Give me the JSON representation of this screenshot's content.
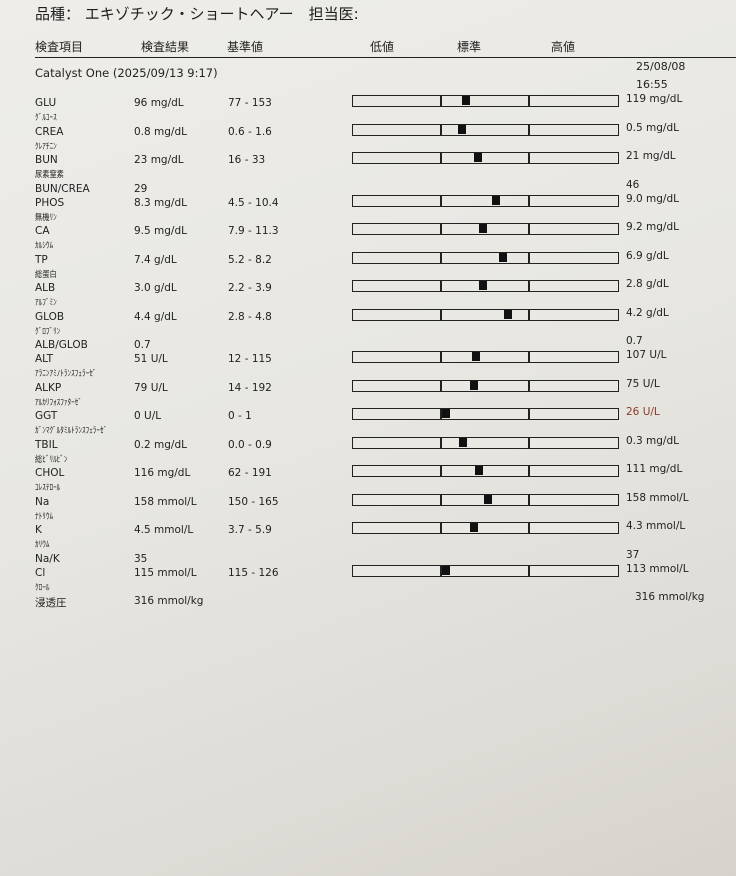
{
  "header": {
    "text": "品種： エキゾチック・ショートヘアー　担当医:"
  },
  "columns": {
    "item": "検査項目",
    "result": "検査結果",
    "reference": "基準値",
    "low": "低値",
    "normal": "標準",
    "high": "高値"
  },
  "analyzer": "Catalyst One (2025/09/13 9:17)",
  "previous": {
    "date": "25/08/08",
    "time": "16:55"
  },
  "colors": {
    "marker": "#111111",
    "prev_flag": "#8a3a2a"
  },
  "rows": [
    {
      "name": "GLU",
      "jp": "ｸﾞﾙｺｰｽ",
      "result": "96 mg/dL",
      "value": 96,
      "range": "77 - 153",
      "lo": 77,
      "hi": 153,
      "prev": "119 mg/dL"
    },
    {
      "name": "CREA",
      "jp": "ｸﾚｱﾁﾆﾝ",
      "result": "0.8 mg/dL",
      "value": 0.8,
      "range": "0.6 - 1.6",
      "lo": 0.6,
      "hi": 1.6,
      "prev": "0.5 mg/dL"
    },
    {
      "name": "BUN",
      "jp": "尿素窒素",
      "result": "23 mg/dL",
      "value": 23,
      "range": "16 - 33",
      "lo": 16,
      "hi": 33,
      "prev": "21 mg/dL"
    },
    {
      "name": "BUN/CREA",
      "jp": "",
      "result": "29",
      "range": "",
      "prev": "46"
    },
    {
      "name": "PHOS",
      "jp": "無機ﾘﾝ",
      "result": "8.3 mg/dL",
      "value": 8.3,
      "range": "4.5 - 10.4",
      "lo": 4.5,
      "hi": 10.4,
      "prev": "9.0 mg/dL"
    },
    {
      "name": "CA",
      "jp": "ｶﾙｼｳﾑ",
      "result": "9.5 mg/dL",
      "value": 9.5,
      "range": "7.9 - 11.3",
      "lo": 7.9,
      "hi": 11.3,
      "prev": "9.2 mg/dL"
    },
    {
      "name": "TP",
      "jp": "総蛋白",
      "result": "7.4 g/dL",
      "value": 7.4,
      "range": "5.2 - 8.2",
      "lo": 5.2,
      "hi": 8.2,
      "prev": "6.9 g/dL"
    },
    {
      "name": "ALB",
      "jp": "ｱﾙﾌﾞﾐﾝ",
      "result": "3.0 g/dL",
      "value": 3.0,
      "range": "2.2 - 3.9",
      "lo": 2.2,
      "hi": 3.9,
      "prev": "2.8 g/dL"
    },
    {
      "name": "GLOB",
      "jp": "ｸﾞﾛﾌﾞﾘﾝ",
      "result": "4.4 g/dL",
      "value": 4.4,
      "range": "2.8 - 4.8",
      "lo": 2.8,
      "hi": 4.8,
      "prev": "4.2 g/dL"
    },
    {
      "name": "ALB/GLOB",
      "jp": "",
      "result": "0.7",
      "range": "",
      "prev": "0.7"
    },
    {
      "name": "ALT",
      "jp": "ｱﾗﾆﾝｱﾐﾉﾄﾗﾝｽﾌｪﾗｰｾﾞ",
      "result": "51 U/L",
      "value": 51,
      "range": "12 - 115",
      "lo": 12,
      "hi": 115,
      "prev": "107 U/L"
    },
    {
      "name": "ALKP",
      "jp": "ｱﾙｶﾘﾌｫｽﾌｧﾀｰｾﾞ",
      "result": "79 U/L",
      "value": 79,
      "range": "14 - 192",
      "lo": 14,
      "hi": 192,
      "prev": "75 U/L"
    },
    {
      "name": "GGT",
      "jp": "ｶﾞﾝﾏｸﾞﾙﾀﾐﾙﾄﾗﾝｽﾌｪﾗｰｾﾞ",
      "result": "0 U/L",
      "value": 0,
      "range": "0 - 1",
      "lo": 0,
      "hi": 1,
      "prev": "26 U/L",
      "prev_flag": true
    },
    {
      "name": "TBIL",
      "jp": "総ﾋﾞﾘﾙﾋﾞﾝ",
      "result": "0.2 mg/dL",
      "value": 0.2,
      "range": "0.0 - 0.9",
      "lo": 0,
      "hi": 0.9,
      "prev": "0.3 mg/dL"
    },
    {
      "name": "CHOL",
      "jp": "ｺﾚｽﾃﾛｰﾙ",
      "result": "116 mg/dL",
      "value": 116,
      "range": "62 - 191",
      "lo": 62,
      "hi": 191,
      "prev": "111 mg/dL"
    },
    {
      "name": "Na",
      "jp": "ﾅﾄﾘｳﾑ",
      "result": "158 mmol/L",
      "value": 158,
      "range": "150 - 165",
      "lo": 150,
      "hi": 165,
      "prev": "158 mmol/L"
    },
    {
      "name": "K",
      "jp": "ｶﾘｳﾑ",
      "result": "4.5 mmol/L",
      "value": 4.5,
      "range": "3.7 - 5.9",
      "lo": 3.7,
      "hi": 5.9,
      "prev": "4.3 mmol/L"
    },
    {
      "name": "Na/K",
      "jp": "",
      "result": "35",
      "range": "",
      "prev": "37"
    },
    {
      "name": "Cl",
      "jp": "ｸﾛｰﾙ",
      "result": "115 mmol/L",
      "value": 115,
      "range": "115 - 126",
      "lo": 115,
      "hi": 126,
      "prev": "113 mmol/L"
    },
    {
      "name": "浸透圧",
      "jp": "",
      "result": "316 mmol/kg",
      "range": "",
      "prev": "316 mmol/kg",
      "prev_offset": true
    }
  ]
}
